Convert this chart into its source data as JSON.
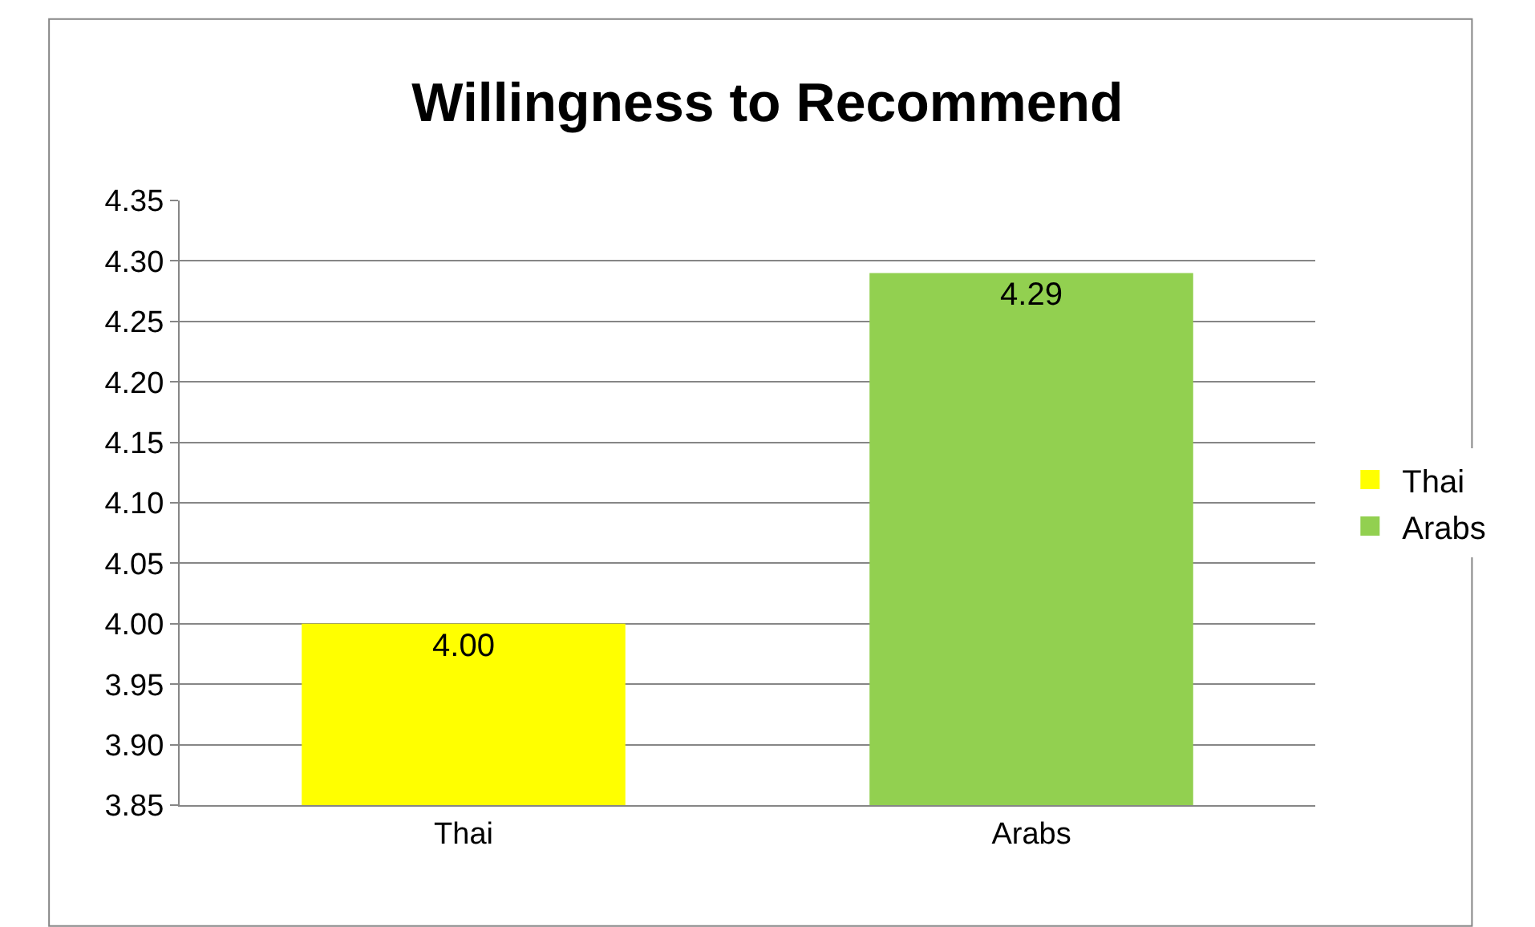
{
  "chart_data": {
    "type": "bar",
    "title": "Willingness to Recommend",
    "categories": [
      "Thai",
      "Arabs"
    ],
    "series": [
      {
        "name": "Thai",
        "color": "#ffff00",
        "values": [
          4.0,
          null
        ],
        "value_labels": [
          "4.00",
          null
        ]
      },
      {
        "name": "Arabs",
        "color": "#92d050",
        "values": [
          null,
          4.29
        ],
        "value_labels": [
          null,
          "4.29"
        ]
      }
    ],
    "ylim": [
      3.85,
      4.35
    ],
    "yticks": [
      {
        "value": 3.85,
        "label": "3.85"
      },
      {
        "value": 3.9,
        "label": "3.90"
      },
      {
        "value": 3.95,
        "label": "3.95"
      },
      {
        "value": 4.0,
        "label": "4.00"
      },
      {
        "value": 4.05,
        "label": "4.05"
      },
      {
        "value": 4.1,
        "label": "4.10"
      },
      {
        "value": 4.15,
        "label": "4.15"
      },
      {
        "value": 4.2,
        "label": "4.20"
      },
      {
        "value": 4.25,
        "label": "4.25"
      },
      {
        "value": 4.3,
        "label": "4.30"
      },
      {
        "value": 4.35,
        "label": "4.35"
      }
    ],
    "grid": "y",
    "legend": "right"
  }
}
